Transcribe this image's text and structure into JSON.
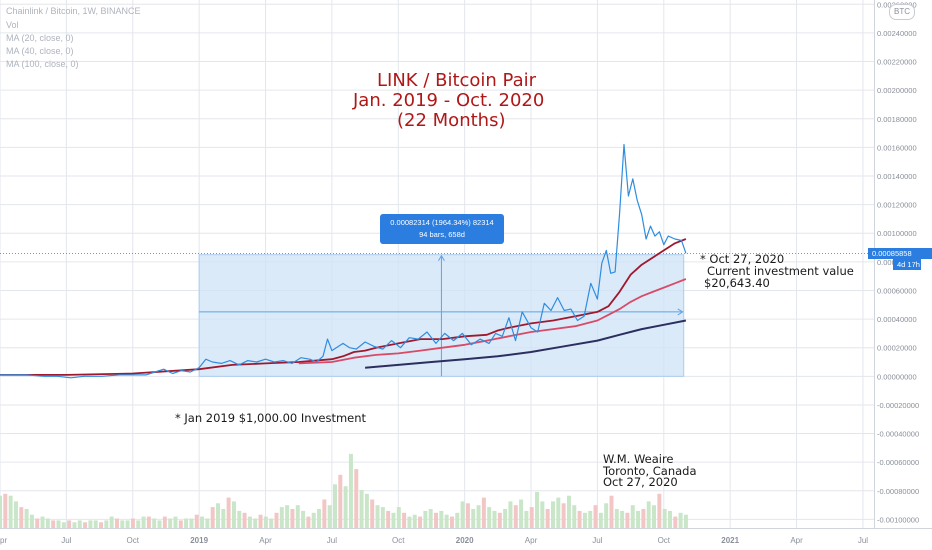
{
  "chart_data": {
    "type": "line",
    "legend": [
      "Chainlink / Bitcoin, 1W, BINANCE",
      "Vol",
      "MA (20, close, 0)",
      "MA (40, close, 0)",
      "MA (100, close, 0)"
    ],
    "title_lines": [
      "LINK / Bitcoin Pair",
      "Jan. 2019 - Oct. 2020",
      "(22 Months)"
    ],
    "currency": "BTC",
    "x_ticks": [
      {
        "label": "pr",
        "t": 0.0
      },
      {
        "label": "Jul",
        "t": 3.0
      },
      {
        "label": "Oct",
        "t": 6.0
      },
      {
        "label": "2019",
        "t": 9.0
      },
      {
        "label": "Apr",
        "t": 12.0
      },
      {
        "label": "Jul",
        "t": 15.0
      },
      {
        "label": "Oct",
        "t": 18.0
      },
      {
        "label": "2020",
        "t": 21.0
      },
      {
        "label": "Apr",
        "t": 24.0
      },
      {
        "label": "Jul",
        "t": 27.0
      },
      {
        "label": "Oct",
        "t": 30.0
      },
      {
        "label": "2021",
        "t": 33.0
      },
      {
        "label": "Apr",
        "t": 36.0
      },
      {
        "label": "Jul",
        "t": 39.0
      }
    ],
    "y_ticks": [
      0.0026,
      0.0024,
      0.0022,
      0.002,
      0.0018,
      0.0016,
      0.0014,
      0.0012,
      0.001,
      0.0008,
      0.0006,
      0.0004,
      0.0002,
      0.0,
      -0.0002,
      -0.0004,
      -0.0006,
      -0.0008,
      -0.001
    ],
    "y_tick_labels": [
      "0.00260000",
      "0.00240000",
      "0.00220000",
      "0.00200000",
      "0.00180000",
      "0.00160000",
      "0.00140000",
      "0.00120000",
      "0.00100000",
      "0.00080000",
      "0.00060000",
      "0.00040000",
      "0.00020000",
      "0.00000000",
      "-0.00020000",
      "-0.00040000",
      "-0.00060000",
      "-0.00080000",
      "-0.00100000"
    ],
    "ylim": [
      -0.00106,
      0.00263
    ],
    "xlim": [
      0.0,
      39.5
    ],
    "grid": true,
    "series": [
      {
        "name": "Chainlink / Bitcoin",
        "color": "#2f8de0",
        "width": 1.2,
        "x": [
          0.0,
          0.6,
          1.2,
          2.0,
          2.6,
          3.2,
          3.8,
          4.6,
          5.4,
          6.0,
          6.6,
          7.0,
          7.4,
          7.8,
          8.2,
          8.6,
          9.0,
          9.3,
          9.6,
          10.0,
          10.4,
          10.8,
          11.2,
          11.6,
          12.0,
          12.4,
          12.8,
          13.2,
          13.6,
          14.0,
          14.3,
          14.6,
          14.8,
          15.0,
          15.2,
          15.5,
          15.8,
          16.1,
          16.5,
          16.9,
          17.3,
          17.7,
          18.1,
          18.5,
          18.9,
          19.3,
          19.7,
          20.1,
          20.5,
          20.9,
          21.3,
          21.7,
          22.1,
          22.4,
          22.7,
          23.0,
          23.3,
          23.6,
          24.0,
          24.3,
          24.6,
          24.9,
          25.2,
          25.5,
          25.8,
          26.1,
          26.4,
          26.7,
          27.0,
          27.2,
          27.4,
          27.6,
          27.8,
          28.0,
          28.2,
          28.4,
          28.6,
          28.8,
          29.0,
          29.2,
          29.4,
          29.6,
          29.8,
          30.0,
          30.2,
          30.5,
          30.8,
          31.0
        ],
        "y": [
          1e-05,
          1e-05,
          1e-05,
          0.0,
          0.0,
          -1e-05,
          0.0,
          0.0,
          1e-05,
          1e-05,
          1e-05,
          3e-05,
          5e-05,
          2e-05,
          4e-05,
          3e-05,
          6e-05,
          0.00012,
          0.0001,
          9e-05,
          0.00011,
          8e-05,
          0.00011,
          0.0001,
          0.00012,
          0.0001,
          0.00011,
          9e-05,
          0.00013,
          0.00012,
          0.0001,
          0.00014,
          0.00026,
          0.00018,
          0.0002,
          0.00023,
          0.0002,
          0.00019,
          0.00024,
          0.00021,
          0.00019,
          0.00025,
          0.0002,
          0.00027,
          0.00026,
          0.00031,
          0.00023,
          0.0003,
          0.00025,
          0.0003,
          0.00022,
          0.00026,
          0.00023,
          0.0003,
          0.00028,
          0.00041,
          0.00025,
          0.00045,
          0.00034,
          0.00031,
          0.00051,
          0.00046,
          0.00055,
          0.00046,
          0.00047,
          0.00039,
          0.00042,
          0.00065,
          0.00054,
          0.00079,
          0.00088,
          0.00072,
          0.00073,
          0.00113,
          0.00162,
          0.00126,
          0.00138,
          0.00123,
          0.00113,
          0.00096,
          0.00105,
          0.00098,
          0.00101,
          0.00092,
          0.00098,
          0.00096,
          0.00095,
          0.00086
        ]
      },
      {
        "name": "MA (20, close, 0)",
        "color": "#a0182e",
        "width": 1.8,
        "x": [
          0.0,
          3.0,
          6.0,
          9.0,
          10.5,
          12.0,
          13.5,
          15.0,
          15.5,
          16.0,
          16.5,
          17.0,
          18.0,
          19.0,
          20.0,
          21.0,
          22.0,
          22.5,
          23.0,
          24.0,
          25.0,
          26.0,
          27.0,
          27.5,
          28.0,
          28.5,
          29.0,
          29.5,
          30.0,
          30.5,
          31.0
        ],
        "y": [
          1e-05,
          1e-05,
          2e-05,
          5e-05,
          8e-05,
          9e-05,
          0.0001,
          0.00012,
          0.00014,
          0.00017,
          0.00018,
          0.0002,
          0.00023,
          0.00026,
          0.00026,
          0.00028,
          0.00029,
          0.00032,
          0.00034,
          0.00037,
          0.00039,
          0.00042,
          0.00045,
          0.00049,
          0.00059,
          0.00071,
          0.00078,
          0.00083,
          0.00088,
          0.00093,
          0.00096
        ]
      },
      {
        "name": "MA (40, close, 0)",
        "color": "#d84a66",
        "width": 1.8,
        "x": [
          13.5,
          15.0,
          16.0,
          17.0,
          18.0,
          19.0,
          20.0,
          21.0,
          22.0,
          23.0,
          24.0,
          25.0,
          26.0,
          27.0,
          27.5,
          28.0,
          28.5,
          29.0,
          29.5,
          30.0,
          30.5,
          31.0
        ],
        "y": [
          9e-05,
          0.0001,
          0.00013,
          0.00015,
          0.00016,
          0.00018,
          0.0002,
          0.00022,
          0.00025,
          0.00028,
          0.00031,
          0.00033,
          0.00035,
          0.00039,
          0.00043,
          0.00047,
          0.00052,
          0.00056,
          0.00059,
          0.00062,
          0.00065,
          0.00068
        ]
      },
      {
        "name": "MA (100, close, 0)",
        "color": "#2c2f5e",
        "width": 2.0,
        "x": [
          16.5,
          18.0,
          19.5,
          21.0,
          22.5,
          24.0,
          25.5,
          27.0,
          28.0,
          29.0,
          30.0,
          31.0
        ],
        "y": [
          6e-05,
          8e-05,
          0.0001,
          0.00012,
          0.00014,
          0.00017,
          0.00021,
          0.00025,
          0.00029,
          0.00033,
          0.00036,
          0.00039
        ]
      }
    ],
    "volume_baseline": -0.00106,
    "volume_scale_max": 0.0005,
    "volume": [
      0.00017,
      0.00018,
      0.00017,
      0.00014,
      0.00011,
      0.0001,
      7e-05,
      5e-05,
      6e-05,
      5e-05,
      4e-05,
      4e-05,
      3e-05,
      4e-05,
      3e-05,
      4e-05,
      3e-05,
      4e-05,
      4e-05,
      3e-05,
      4e-05,
      6e-05,
      5e-05,
      4e-05,
      4e-05,
      5e-05,
      4e-05,
      6e-05,
      6e-05,
      5e-05,
      4e-05,
      6e-05,
      5e-05,
      6e-05,
      4e-05,
      5e-05,
      5e-05,
      7e-05,
      6e-05,
      5e-05,
      0.00011,
      0.00013,
      0.0001,
      0.00016,
      0.00014,
      9e-05,
      8e-05,
      6e-05,
      5e-05,
      7e-05,
      6e-05,
      5e-05,
      8e-05,
      0.00011,
      0.00012,
      0.0001,
      0.00012,
      9e-05,
      6e-05,
      8e-05,
      0.0001,
      0.00015,
      0.00012,
      0.00023,
      0.00028,
      0.00022,
      0.00039,
      0.00031,
      0.0002,
      0.00018,
      0.00015,
      0.00012,
      0.00011,
      9e-05,
      8e-05,
      0.00011,
      8e-05,
      6e-05,
      7e-05,
      6e-05,
      9e-05,
      0.0001,
      8e-05,
      9e-05,
      7e-05,
      6e-05,
      8e-05,
      0.00014,
      0.00013,
      0.0001,
      0.00012,
      0.00016,
      0.00011,
      9e-05,
      8e-05,
      0.0001,
      0.00014,
      0.00012,
      0.00015,
      9e-05,
      0.00011,
      0.00019,
      0.00014,
      0.0001,
      0.00014,
      0.00016,
      0.00013,
      0.00017,
      0.00012,
      9e-05,
      8e-05,
      9e-05,
      0.00012,
      8e-05,
      0.00013,
      0.00017,
      0.0001,
      9e-05,
      8e-05,
      0.00012,
      9e-05,
      0.0001,
      0.00014,
      0.00012,
      0.00018,
      0.0001,
      9e-05,
      6e-05,
      8e-05,
      7e-05
    ],
    "measure": {
      "x_start": 9.0,
      "x_end": 30.9,
      "y_low": 0.0,
      "y_high": 0.00085,
      "line1": "0.00082314 (1964.34%) 82314",
      "line2": "94 bars, 658d",
      "arrow_y": 0.00045
    },
    "current_price": {
      "value": 0.00085858,
      "label": "0.00085858",
      "countdown": "4d 17h"
    },
    "annotations": {
      "oct_note": [
        "* Oct 27, 2020",
        "Current investment value",
        "$20,643.40"
      ],
      "jan_note": "* Jan 2019 $1,000.00 Investment",
      "author": [
        "W.M. Weaire",
        "Toronto, Canada",
        "Oct 27, 2020"
      ]
    },
    "colors": {
      "grid": "#e3e6ec",
      "measure_fill": "#cfe3f7",
      "measure_border": "#a9cdf0",
      "measure_arrow": "#5ea3e6",
      "volume_up": "#c9e6c9",
      "volume_down": "#f3c6c6",
      "axis_text": "#8a8f99",
      "title": "#b01818"
    }
  }
}
